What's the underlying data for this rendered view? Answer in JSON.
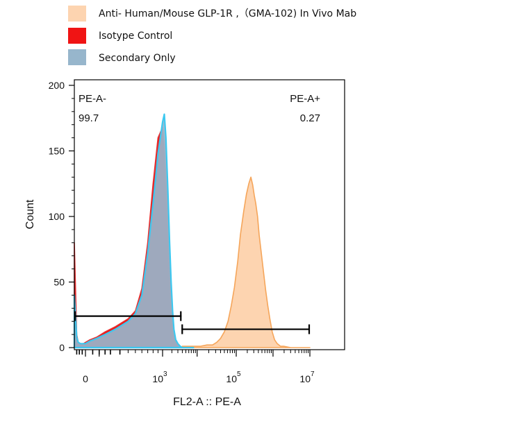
{
  "chart_data": {
    "type": "area",
    "xlabel": "FL2-A :: PE-A",
    "ylabel": "Count",
    "ylim": [
      0,
      200
    ],
    "y_ticks": [
      0,
      50,
      100,
      150,
      200
    ],
    "x_scale": "biexponential",
    "x_ticks": [
      {
        "value": 0,
        "base": "0",
        "exp": ""
      },
      {
        "value": 1000,
        "base": "10",
        "exp": "3"
      },
      {
        "value": 100000,
        "base": "10",
        "exp": "5"
      },
      {
        "value": 10000000,
        "base": "10",
        "exp": "7"
      }
    ],
    "legend": {
      "position": "top-left",
      "entries": [
        {
          "label": "Anti- Human/Mouse GLP-1R ,（GMA-102) In Vivo Mab",
          "color": "#fdd4b0"
        },
        {
          "label": "Isotype Control",
          "color": "#f01414"
        },
        {
          "label": "Secondary Only",
          "color": "#97b6cc"
        }
      ]
    },
    "gates": [
      {
        "name": "PE-A-",
        "value": "99.7",
        "x_range": [
          -200,
          3800
        ],
        "y": 24
      },
      {
        "name": "PE-A+",
        "value": "0.27",
        "x_range": [
          3800,
          10000000
        ],
        "y": 14
      }
    ],
    "series": [
      {
        "name": "Anti- Human/Mouse GLP-1R ,（GMA-102) In Vivo Mab",
        "fill": "#fdd4b0",
        "stroke": "#f5a55a",
        "x": [
          4000,
          8000,
          12000,
          18000,
          25000,
          32000,
          40000,
          50000,
          62000,
          75000,
          90000,
          110000,
          130000,
          160000,
          190000,
          220000,
          250000,
          280000,
          310000,
          340000,
          380000,
          420000,
          480000,
          550000,
          630000,
          720000,
          820000,
          950000,
          1100000,
          1300000,
          1600000,
          2000000,
          3000000,
          10000000
        ],
        "y": [
          1,
          1,
          1,
          2,
          2,
          4,
          7,
          12,
          20,
          32,
          46,
          66,
          86,
          104,
          117,
          125,
          130,
          124,
          116,
          110,
          100,
          86,
          72,
          58,
          44,
          32,
          22,
          12,
          6,
          3,
          1,
          1,
          0,
          0
        ]
      },
      {
        "name": "Isotype Control",
        "fill": "#f01414",
        "stroke": "#e63232",
        "x": [
          -200,
          -150,
          -120,
          -80,
          -30,
          0,
          30,
          80,
          150,
          250,
          400,
          500,
          600,
          700,
          800,
          900,
          1000,
          1150,
          1300,
          1500,
          1700,
          1900,
          2100,
          2300,
          2600,
          3000,
          3500,
          4000,
          5000,
          8000
        ],
        "y": [
          80,
          10,
          4,
          3,
          3,
          4,
          6,
          8,
          12,
          16,
          22,
          28,
          45,
          80,
          125,
          160,
          168,
          155,
          130,
          95,
          60,
          35,
          20,
          12,
          6,
          3,
          1,
          0,
          0,
          0
        ]
      },
      {
        "name": "Secondary Only",
        "fill": "#97b6cc",
        "stroke": "#3cc8f0",
        "x": [
          -200,
          -150,
          -120,
          -80,
          -30,
          0,
          30,
          80,
          150,
          250,
          400,
          500,
          600,
          700,
          800,
          900,
          1000,
          1150,
          1300,
          1500,
          1700,
          1900,
          2100,
          2300,
          2600,
          3000,
          3500,
          4000,
          5000,
          8000
        ],
        "y": [
          40,
          8,
          4,
          3,
          3,
          3,
          5,
          7,
          10,
          14,
          20,
          26,
          40,
          72,
          110,
          148,
          172,
          178,
          160,
          120,
          80,
          50,
          28,
          14,
          6,
          3,
          1,
          0,
          0,
          0
        ]
      }
    ]
  }
}
